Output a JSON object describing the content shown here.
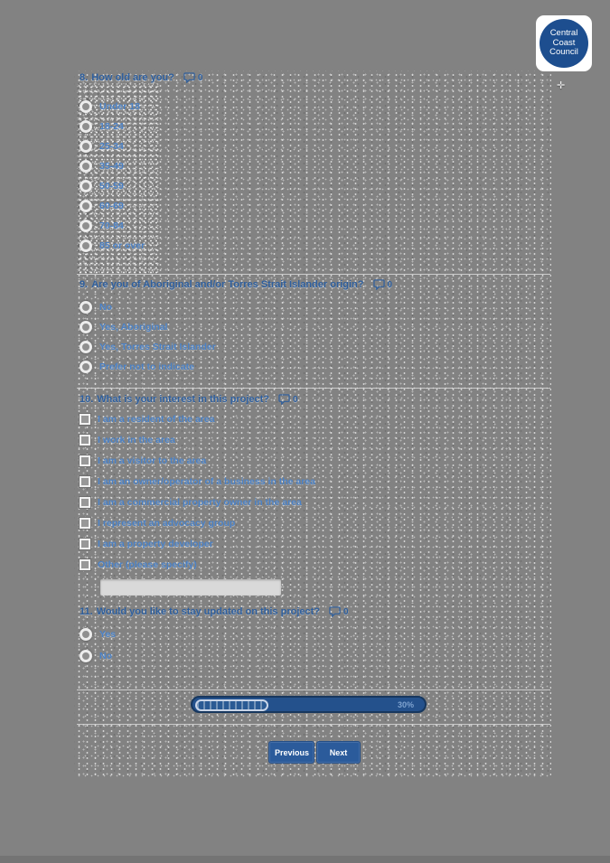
{
  "colors": {
    "accent_navy": "#1f4e7c",
    "link_blue": "#4a80c4",
    "button_navy": "#2b5b9b",
    "logo_blue": "#1d4e8f"
  },
  "logo": {
    "line1": "Central",
    "line2": "Coast",
    "line3": "Council"
  },
  "questions": [
    {
      "number": "8.",
      "title": "How old are you?",
      "comment_count": "0",
      "type": "radio",
      "options": [
        "Under 18",
        "18-24",
        "25-34",
        "35-49",
        "50-59",
        "60-69",
        "70-84",
        "85 or over"
      ]
    },
    {
      "number": "9.",
      "title": "Are you of Aboriginal and/or Torres Strait Islander origin?",
      "comment_count": "0",
      "type": "radio",
      "options": [
        "No",
        "Yes, Aboriginal",
        "Yes, Torres Strait Islander",
        "Prefer not to indicate"
      ]
    },
    {
      "number": "10.",
      "title": "What is your interest in this project?",
      "comment_count": "0",
      "type": "checkbox",
      "options": [
        "I am a resident of the area",
        "I work in the area",
        "I am a visitor to the area",
        "I am an owner/operator of a business in the area",
        "I am a commercial property owner in the area",
        "I represent an advocacy group",
        "I am a property developer",
        "Other (please specify)"
      ],
      "other_value": ""
    },
    {
      "number": "11.",
      "title": "Would you like to stay updated on this project?",
      "comment_count": "0",
      "type": "radio",
      "options": [
        "Yes",
        "No"
      ]
    }
  ],
  "progress": {
    "value": 30,
    "label": "30%"
  },
  "nav": {
    "previous": "Previous",
    "next": "Next"
  }
}
